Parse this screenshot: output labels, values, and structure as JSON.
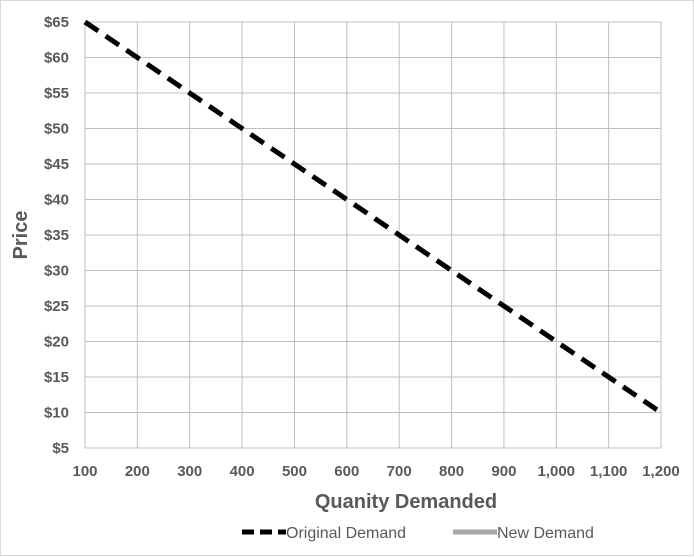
{
  "chart_data": {
    "type": "line",
    "title": "",
    "xlabel": "Quanity Demanded",
    "ylabel": "Price",
    "xlim": [
      100,
      1200
    ],
    "ylim": [
      5,
      65
    ],
    "x_ticks": [
      "100",
      "200",
      "300",
      "400",
      "500",
      "600",
      "700",
      "800",
      "900",
      "1,000",
      "1,100",
      "1,200"
    ],
    "y_ticks": [
      "$5",
      "$10",
      "$15",
      "$20",
      "$25",
      "$30",
      "$35",
      "$40",
      "$45",
      "$50",
      "$55",
      "$60",
      "$65"
    ],
    "grid": true,
    "legend_position": "bottom",
    "series": [
      {
        "name": "Original Demand",
        "style": "dashed",
        "color": "#000000",
        "x": [
          100,
          1200
        ],
        "y": [
          65,
          10
        ]
      },
      {
        "name": "New Demand",
        "style": "solid",
        "color": "#a6a6a6",
        "x": [],
        "y": []
      }
    ]
  },
  "colors": {
    "grid": "#bfbfbf",
    "text": "#595959"
  }
}
